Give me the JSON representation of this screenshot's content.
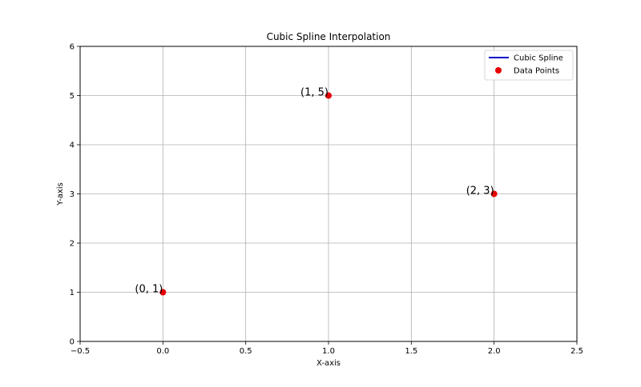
{
  "chart_data": {
    "type": "scatter",
    "title": "Cubic Spline Interpolation",
    "xlabel": "X-axis",
    "ylabel": "Y-axis",
    "xlim": [
      -0.5,
      2.5
    ],
    "ylim": [
      0,
      6
    ],
    "xticks": [
      -0.5,
      0.0,
      0.5,
      1.0,
      1.5,
      2.0,
      2.5
    ],
    "xtick_labels": [
      "−0.5",
      "0.0",
      "0.5",
      "1.0",
      "1.5",
      "2.0",
      "2.5"
    ],
    "yticks": [
      0,
      1,
      2,
      3,
      4,
      5,
      6
    ],
    "ytick_labels": [
      "0",
      "1",
      "2",
      "3",
      "4",
      "5",
      "6"
    ],
    "grid": true,
    "legend_position": "top-right",
    "series": [
      {
        "name": "Cubic Spline",
        "kind": "line",
        "color": "#0000cc",
        "x": [],
        "y": []
      },
      {
        "name": "Data Points",
        "kind": "scatter",
        "color": "#e60000",
        "x": [
          0,
          1,
          2
        ],
        "y": [
          1,
          5,
          3
        ]
      }
    ],
    "annotations": [
      {
        "text": "(0, 1)",
        "x": 0,
        "y": 1
      },
      {
        "text": "(1, 5)",
        "x": 1,
        "y": 5
      },
      {
        "text": "(2, 3)",
        "x": 2,
        "y": 3
      }
    ]
  }
}
